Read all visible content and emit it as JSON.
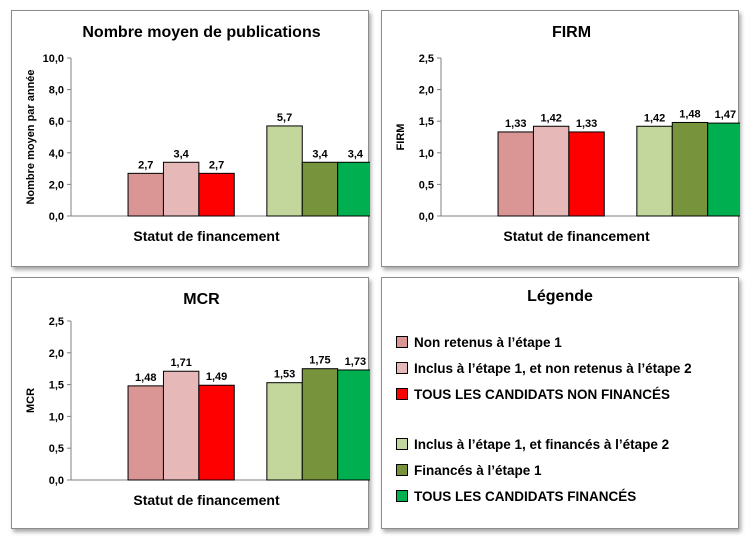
{
  "chart_data": [
    {
      "type": "bar",
      "title": "Nombre moyen  de publications",
      "xlabel": "Statut de financement",
      "ylabel": "Nombre moyen par année",
      "ylim": [
        0,
        10
      ],
      "yticks": [
        "0,0",
        "2,0",
        "4,0",
        "6,0",
        "8,0",
        "10,0"
      ],
      "groups": [
        {
          "values": [
            2.7,
            3.4,
            2.7
          ],
          "labels": [
            "2,7",
            "3,4",
            "2,7"
          ]
        },
        {
          "values": [
            5.7,
            3.4,
            3.4
          ],
          "labels": [
            "5,7",
            "3,4",
            "3,4"
          ]
        }
      ]
    },
    {
      "type": "bar",
      "title": "FIRM",
      "xlabel": "Statut de financement",
      "ylabel": "FIRM",
      "ylim": [
        0,
        2.5
      ],
      "yticks": [
        "0,0",
        "0,5",
        "1,0",
        "1,5",
        "2,0",
        "2,5"
      ],
      "groups": [
        {
          "values": [
            1.33,
            1.42,
            1.33
          ],
          "labels": [
            "1,33",
            "1,42",
            "1,33"
          ]
        },
        {
          "values": [
            1.42,
            1.48,
            1.47
          ],
          "labels": [
            "1,42",
            "1,48",
            "1,47"
          ]
        }
      ]
    },
    {
      "type": "bar",
      "title": "MCR",
      "xlabel": "Statut de financement",
      "ylabel": "MCR",
      "ylim": [
        0,
        2.5
      ],
      "yticks": [
        "0,0",
        "0,5",
        "1,0",
        "1,5",
        "2,0",
        "2,5"
      ],
      "groups": [
        {
          "values": [
            1.48,
            1.71,
            1.49
          ],
          "labels": [
            "1,48",
            "1,71",
            "1,49"
          ]
        },
        {
          "values": [
            1.53,
            1.75,
            1.73
          ],
          "labels": [
            "1,53",
            "1,75",
            "1,73"
          ]
        }
      ]
    }
  ],
  "legend": {
    "title": "Légende",
    "items": [
      {
        "label": "Non retenus à l’étape 1",
        "color": "#d99694"
      },
      {
        "label": "Inclus à l’étape 1, et non retenus à l’étape 2",
        "color": "#e6b9b8"
      },
      {
        "label": "TOUS LES CANDIDATS NON FINANCÉS",
        "color": "#ff0000"
      },
      {
        "label": "Inclus à l’étape 1, et financés à l’étape 2",
        "color": "#c3d69b"
      },
      {
        "label": "Financés à l’étape 1",
        "color": "#77933c"
      },
      {
        "label": "TOUS LES CANDIDATS FINANCÉS",
        "color": "#00b050"
      }
    ]
  }
}
